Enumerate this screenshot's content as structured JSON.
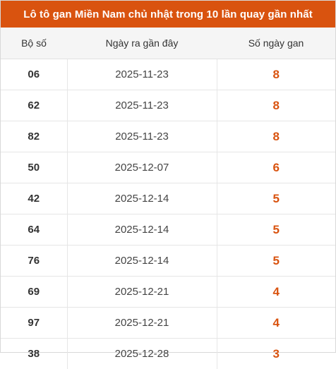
{
  "title": "Lô tô gan Miền Nam chủ nhật trong 10 lần quay gần nhất",
  "headers": [
    "Bộ số",
    "Ngày ra gần đây",
    "Số ngày gan"
  ],
  "accent_color": "#d9530f",
  "rows": [
    {
      "bo_so": "06",
      "ngay": "2025-11-23",
      "so_ngay_gan": "8"
    },
    {
      "bo_so": "62",
      "ngay": "2025-11-23",
      "so_ngay_gan": "8"
    },
    {
      "bo_so": "82",
      "ngay": "2025-11-23",
      "so_ngay_gan": "8"
    },
    {
      "bo_so": "50",
      "ngay": "2025-12-07",
      "so_ngay_gan": "6"
    },
    {
      "bo_so": "42",
      "ngay": "2025-12-14",
      "so_ngay_gan": "5"
    },
    {
      "bo_so": "64",
      "ngay": "2025-12-14",
      "so_ngay_gan": "5"
    },
    {
      "bo_so": "76",
      "ngay": "2025-12-14",
      "so_ngay_gan": "5"
    },
    {
      "bo_so": "69",
      "ngay": "2025-12-21",
      "so_ngay_gan": "4"
    },
    {
      "bo_so": "97",
      "ngay": "2025-12-21",
      "so_ngay_gan": "4"
    },
    {
      "bo_so": "38",
      "ngay": "2025-12-28",
      "so_ngay_gan": "3"
    }
  ]
}
